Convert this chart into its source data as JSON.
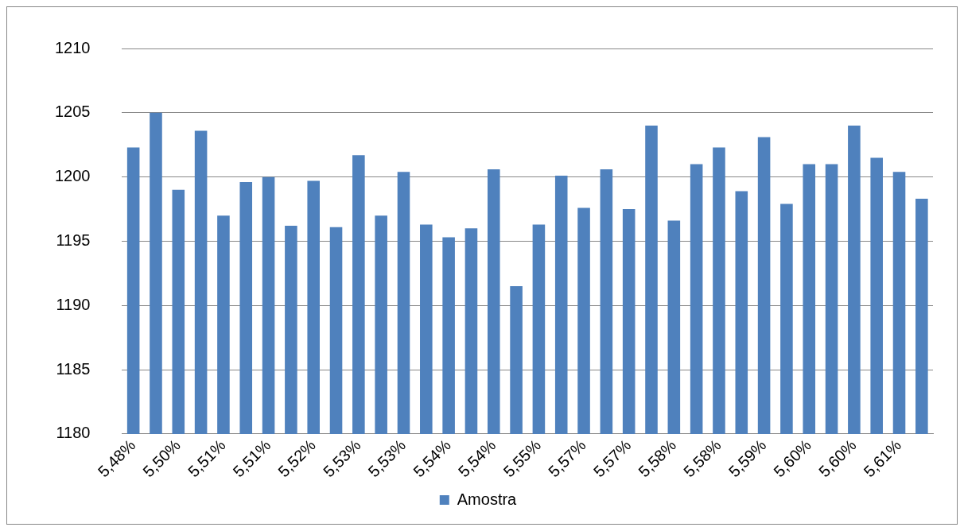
{
  "chart_data": {
    "type": "bar",
    "categories": [
      "5,48%",
      null,
      "5,50%",
      null,
      "5,51%",
      null,
      "5,51%",
      null,
      "5,52%",
      null,
      "5,53%",
      null,
      "5,53%",
      null,
      "5,54%",
      null,
      "5,54%",
      null,
      "5,55%",
      null,
      "5,57%",
      null,
      "5,57%",
      null,
      "5,58%",
      null,
      "5,58%",
      null,
      "5,59%",
      null,
      "5,60%",
      null,
      "5,60%",
      null,
      "5,61%",
      null
    ],
    "series": [
      {
        "name": "Amostra",
        "color": "#4f81bd",
        "values": [
          1202.3,
          1205,
          1199,
          1203.6,
          1197,
          1199.6,
          1200,
          1196.2,
          1199.7,
          1196.1,
          1201.7,
          1197,
          1200.4,
          1196.3,
          1195.3,
          1196,
          1200.6,
          1191.5,
          1196.3,
          1200.1,
          1197.6,
          1200.6,
          1197.5,
          1204,
          1196.6,
          1201,
          1202.3,
          1198.9,
          1203.1,
          1197.9,
          1201,
          1201,
          1204,
          1201.5,
          1200.4,
          1198.3
        ]
      }
    ],
    "ylim": [
      1180,
      1210
    ],
    "yticks": [
      1180,
      1185,
      1190,
      1195,
      1200,
      1205,
      1210
    ],
    "grid": "y",
    "legend": "bottom"
  }
}
